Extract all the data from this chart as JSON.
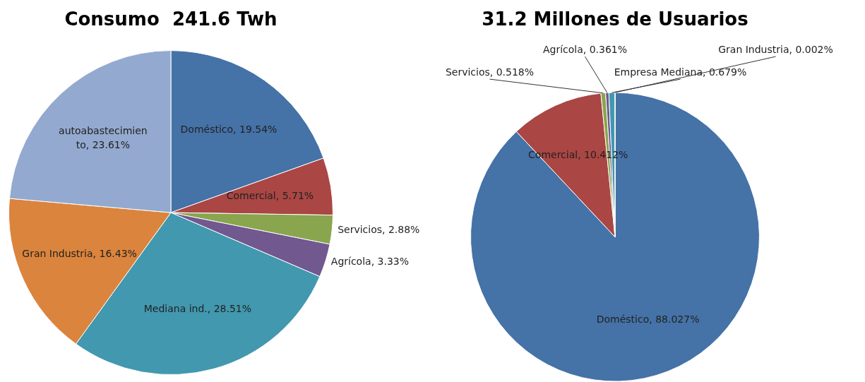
{
  "chart_data": [
    {
      "type": "pie",
      "title": "Consumo  241.6 Twh",
      "categories": [
        "Doméstico",
        "Comercial",
        "Servicios",
        "Agrícola",
        "Mediana ind.",
        "Gran Industria",
        "autoabastecimiento"
      ],
      "values": [
        19.54,
        5.71,
        2.88,
        3.33,
        28.51,
        16.43,
        23.61
      ],
      "colors": [
        "#4572a7",
        "#aa4643",
        "#89a54e",
        "#71588f",
        "#4198af",
        "#db843d",
        "#93a9cf"
      ],
      "value_labels": [
        "19.54%",
        "5.71%",
        "2.88%",
        "3.33%",
        "28.51%",
        "16.43%",
        "23.61%"
      ],
      "legend": false
    },
    {
      "type": "pie",
      "title": "31.2 Millones de Usuarios",
      "categories": [
        "Doméstico",
        "Comercial",
        "Servicios",
        "Agrícola",
        "Empresa Mediana",
        "Gran Industria"
      ],
      "values": [
        88.027,
        10.412,
        0.518,
        0.361,
        0.679,
        0.002
      ],
      "colors": [
        "#4572a7",
        "#aa4643",
        "#89a54e",
        "#71588f",
        "#4198af",
        "#db843d"
      ],
      "value_labels": [
        "88.027%",
        "10.412%",
        "0.518%",
        "0.361%",
        "0.679%",
        "0.002%"
      ],
      "legend": false
    }
  ]
}
